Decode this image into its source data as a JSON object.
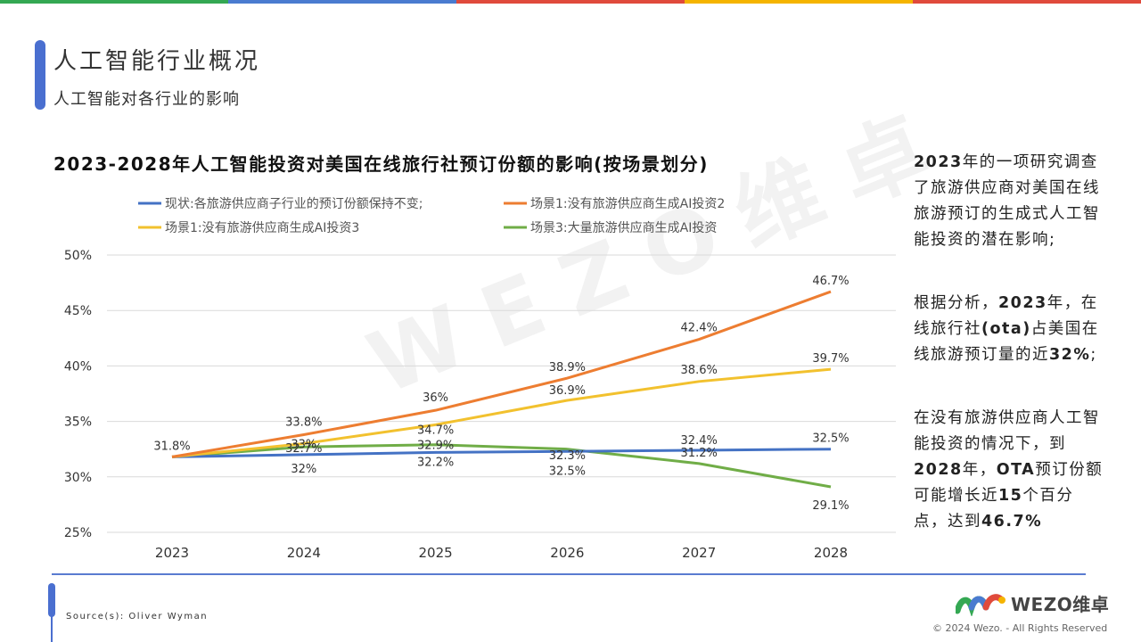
{
  "header": {
    "title": "人工智能行业概况",
    "subtitle": "人工智能对各行业的影响",
    "stripe_colors": [
      "#34a853",
      "#4a7bd0",
      "#e04a3c",
      "#f5b400",
      "#e04a3c"
    ]
  },
  "watermark": "WEZO维卓",
  "chart_data": {
    "type": "line",
    "title": "2023-2028年人工智能投资对美国在线旅行社预订份额的影响(按场景划分)",
    "categories": [
      "2023",
      "2024",
      "2025",
      "2026",
      "2027",
      "2028"
    ],
    "ylim": [
      25,
      50
    ],
    "yticks": [
      "50%",
      "45%",
      "40%",
      "35%",
      "30%",
      "25%"
    ],
    "ytick_values": [
      50,
      45,
      40,
      35,
      30,
      25
    ],
    "grid": true,
    "legend_position": "top",
    "series": [
      {
        "name": "现状:各旅游供应商子行业的预订份额保持不变;",
        "color": "#4472c4",
        "values": [
          31.8,
          32,
          32.2,
          32.3,
          32.4,
          32.5
        ],
        "labels": [
          "31.8%",
          "32%",
          "32.2%",
          "32.3%",
          "32.4%",
          "32.5%"
        ]
      },
      {
        "name": "场景1:没有旅游供应商生成AI投资2",
        "color": "#ed7d31",
        "values": [
          31.8,
          33.8,
          36,
          38.9,
          42.4,
          46.7
        ],
        "labels": [
          "",
          "33.8%",
          "36%",
          "38.9%",
          "42.4%",
          "46.7%"
        ]
      },
      {
        "name": "场景1:没有旅游供应商生成AI投资3",
        "color": "#f2c12e",
        "values": [
          31.8,
          33,
          34.7,
          36.9,
          38.6,
          39.7
        ],
        "labels": [
          "",
          "33%",
          "34.7%",
          "36.9%",
          "38.6%",
          "39.7%"
        ]
      },
      {
        "name": "场景3:大量旅游供应商生成AI投资",
        "color": "#70ad47",
        "values": [
          31.8,
          32.7,
          32.9,
          32.5,
          31.2,
          29.1
        ],
        "labels": [
          "",
          "32.7%",
          "32.9%",
          "32.5%",
          "31.2%",
          "29.1%"
        ]
      }
    ]
  },
  "side": {
    "p1": [
      {
        "t": "2023",
        "b": true
      },
      {
        "t": "年的一项研究调查了旅游供应商对美国在线旅游预订的生成式人工智能投资的潜在影响;",
        "b": false
      }
    ],
    "p2": [
      {
        "t": "根据分析，",
        "b": false
      },
      {
        "t": "2023",
        "b": true
      },
      {
        "t": "年，在线旅行社",
        "b": false
      },
      {
        "t": "(ota)",
        "b": true
      },
      {
        "t": "占美国在线旅游预订量的近",
        "b": false
      },
      {
        "t": "32%",
        "b": true
      },
      {
        "t": ";",
        "b": false
      }
    ],
    "p3": [
      {
        "t": "在没有旅游供应商人工智能投资的情况下，到",
        "b": false
      },
      {
        "t": "2028",
        "b": true
      },
      {
        "t": "年，",
        "b": false
      },
      {
        "t": "OTA",
        "b": true
      },
      {
        "t": "预订份额可能增长近",
        "b": false
      },
      {
        "t": "15",
        "b": true
      },
      {
        "t": "个百分点，达到",
        "b": false
      },
      {
        "t": "46.7%",
        "b": true
      }
    ]
  },
  "footer": {
    "source": "Source(s): Oliver Wyman",
    "logo_text": "WEZO维卓",
    "copyright": "© 2024 Wezo. - All Rights Reserved"
  }
}
